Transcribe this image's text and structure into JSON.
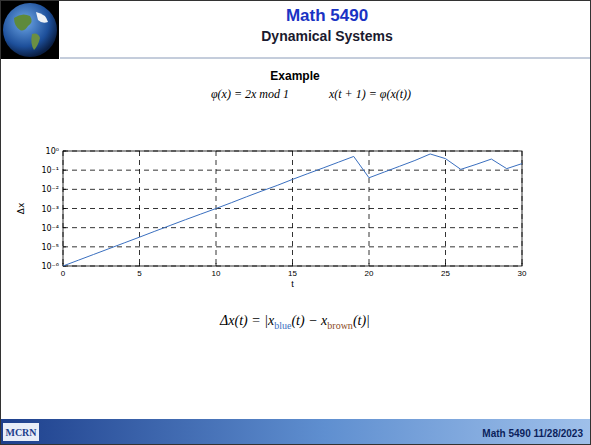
{
  "slide": {
    "title": "Math 5490",
    "subtitle": "Dynamical Systems",
    "heading": "Example",
    "formula_left": "φ(x) = 2x mod 1",
    "formula_right": "x(t + 1) = φ(x(t))",
    "caption": {
      "start": "Δx(t) = |x",
      "sub1": "blue",
      "middle": "(t) − x",
      "sub2": "brown",
      "end": "(t)|"
    },
    "logo": "MCRN",
    "footer": "Math 5490  11/28/2023"
  },
  "chart_data": {
    "type": "line",
    "x_label": "t",
    "y_label": "Δx",
    "color": "#3a6fbf",
    "log": "y",
    "grid": true,
    "x": [
      0,
      1,
      2,
      3,
      4,
      5,
      6,
      7,
      8,
      9,
      10,
      11,
      12,
      13,
      14,
      15,
      16,
      17,
      18,
      19,
      20,
      21,
      22,
      23,
      24,
      25,
      26,
      27,
      28,
      29,
      30
    ],
    "values": [
      1e-06,
      2e-06,
      4e-06,
      8e-06,
      1.6e-05,
      3.2e-05,
      6.5e-05,
      0.00013,
      0.00026,
      0.00051,
      0.001,
      0.002,
      0.0041,
      0.0082,
      0.016,
      0.033,
      0.066,
      0.13,
      0.26,
      0.52,
      0.04,
      0.08,
      0.16,
      0.32,
      0.7,
      0.4,
      0.11,
      0.2,
      0.38,
      0.12,
      0.22
    ],
    "xlim": [
      0,
      30
    ],
    "xticks": [
      0,
      5,
      10,
      15,
      20,
      25,
      30
    ],
    "ylim": [
      1e-06,
      1
    ],
    "yticks": [
      {
        "value": 1e-06,
        "label": "10⁻⁶"
      },
      {
        "value": 1e-05,
        "label": "10⁻⁵"
      },
      {
        "value": 0.0001,
        "label": "10⁻⁴"
      },
      {
        "value": 0.001,
        "label": "10⁻³"
      },
      {
        "value": 0.01,
        "label": "10⁻²"
      },
      {
        "value": 0.1,
        "label": "10⁻¹"
      },
      {
        "value": 1,
        "label": "10⁰"
      }
    ]
  }
}
